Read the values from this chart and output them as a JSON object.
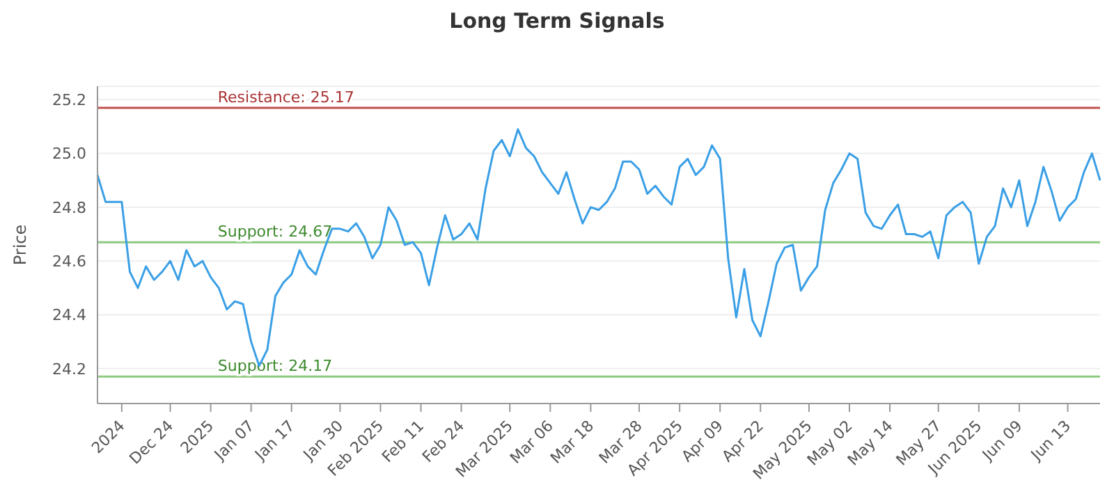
{
  "chart_data": {
    "type": "line",
    "title": "Long Term Signals",
    "ylabel": "Price",
    "categories": [
      null,
      null,
      null,
      "2024",
      null,
      null,
      null,
      null,
      null,
      "Dec 24",
      null,
      null,
      null,
      null,
      "2025",
      null,
      null,
      null,
      null,
      "Jan 07",
      null,
      null,
      null,
      null,
      "Jan 17",
      null,
      null,
      null,
      null,
      null,
      "Jan 30",
      null,
      null,
      null,
      null,
      "Feb 2025",
      null,
      null,
      null,
      null,
      "Feb 11",
      null,
      null,
      null,
      null,
      "Feb 24",
      null,
      null,
      null,
      null,
      null,
      "Mar 2025",
      null,
      null,
      null,
      null,
      "Mar 06",
      null,
      null,
      null,
      null,
      "Mar 18",
      null,
      null,
      null,
      null,
      null,
      "Mar 28",
      null,
      null,
      null,
      null,
      "Apr 2025",
      null,
      null,
      null,
      null,
      "Apr 09",
      null,
      null,
      null,
      null,
      "Apr 22",
      null,
      null,
      null,
      null,
      null,
      "May 2025",
      null,
      null,
      null,
      null,
      "May 02",
      null,
      null,
      null,
      null,
      "May 14",
      null,
      null,
      null,
      null,
      null,
      "May 27",
      null,
      null,
      null,
      null,
      "Jun 2025",
      null,
      null,
      null,
      null,
      "Jun 09",
      null,
      null,
      null,
      null,
      null,
      "Jun 13",
      null,
      null,
      null,
      null
    ],
    "series": [
      {
        "color": "#3a9fe6",
        "values": [
          24.92,
          24.82,
          24.82,
          24.82,
          24.56,
          24.5,
          24.58,
          24.53,
          24.56,
          24.6,
          24.53,
          24.64,
          24.58,
          24.6,
          24.54,
          24.5,
          24.42,
          24.45,
          24.44,
          24.3,
          24.21,
          24.27,
          24.47,
          24.52,
          24.55,
          24.64,
          24.58,
          24.55,
          24.64,
          24.72,
          24.72,
          24.71,
          24.74,
          24.69,
          24.61,
          24.66,
          24.8,
          24.75,
          24.66,
          24.67,
          24.63,
          24.51,
          24.65,
          24.77,
          24.68,
          24.7,
          24.74,
          24.68,
          24.87,
          25.01,
          25.05,
          24.99,
          25.09,
          25.02,
          24.99,
          24.93,
          24.89,
          24.85,
          24.93,
          24.83,
          24.74,
          24.8,
          24.79,
          24.82,
          24.87,
          24.97,
          24.97,
          24.94,
          24.85,
          24.88,
          24.84,
          24.81,
          24.95,
          24.98,
          24.92,
          24.95,
          25.03,
          24.98,
          24.61,
          24.39,
          24.57,
          24.38,
          24.32,
          24.45,
          24.59,
          24.65,
          24.66,
          24.49,
          24.54,
          24.58,
          24.79,
          24.89,
          24.94,
          25.0,
          24.98,
          24.78,
          24.73,
          24.72,
          24.77,
          24.81,
          24.7,
          24.7,
          24.69,
          24.71,
          24.61,
          24.77,
          24.8,
          24.82,
          24.78,
          24.59,
          24.69,
          24.73,
          24.87,
          24.8,
          24.9,
          24.73,
          24.82,
          24.95,
          24.86,
          24.75,
          24.8,
          24.83,
          24.93,
          25.0,
          24.9
        ]
      }
    ],
    "ylim": [
      24.07,
      25.25
    ],
    "yticks": [
      24.2,
      24.4,
      24.6,
      24.8,
      {
        "value": 25.0,
        "label": "25.0"
      },
      25.2
    ],
    "grid": "y",
    "ref_lines": [
      {
        "axis": "y",
        "value": 25.17,
        "label": "Resistance: 25.17",
        "color": "#c0504d"
      },
      {
        "axis": "y",
        "value": 24.67,
        "label": "Support: 24.67",
        "color": "#8cc97f"
      },
      {
        "axis": "y",
        "value": 24.17,
        "label": "Support: 24.17",
        "color": "#8cc97f"
      }
    ]
  }
}
